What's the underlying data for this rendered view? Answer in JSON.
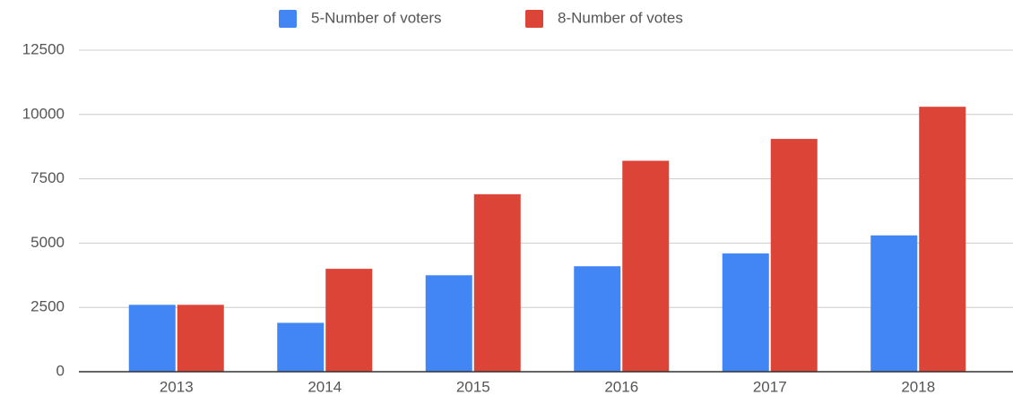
{
  "chart_data": {
    "type": "bar",
    "categories": [
      "2013",
      "2014",
      "2015",
      "2016",
      "2017",
      "2018"
    ],
    "series": [
      {
        "name": "5-Number of voters",
        "color": "#4285f4",
        "values": [
          2600,
          1900,
          3750,
          4100,
          4600,
          5300
        ]
      },
      {
        "name": "8-Number of votes",
        "color": "#db4437",
        "values": [
          2600,
          4000,
          6900,
          8200,
          9050,
          10300
        ]
      }
    ],
    "ylim": [
      0,
      12500
    ],
    "yticks": [
      0,
      2500,
      5000,
      7500,
      10000,
      12500
    ],
    "grid": true,
    "legend": "top"
  }
}
